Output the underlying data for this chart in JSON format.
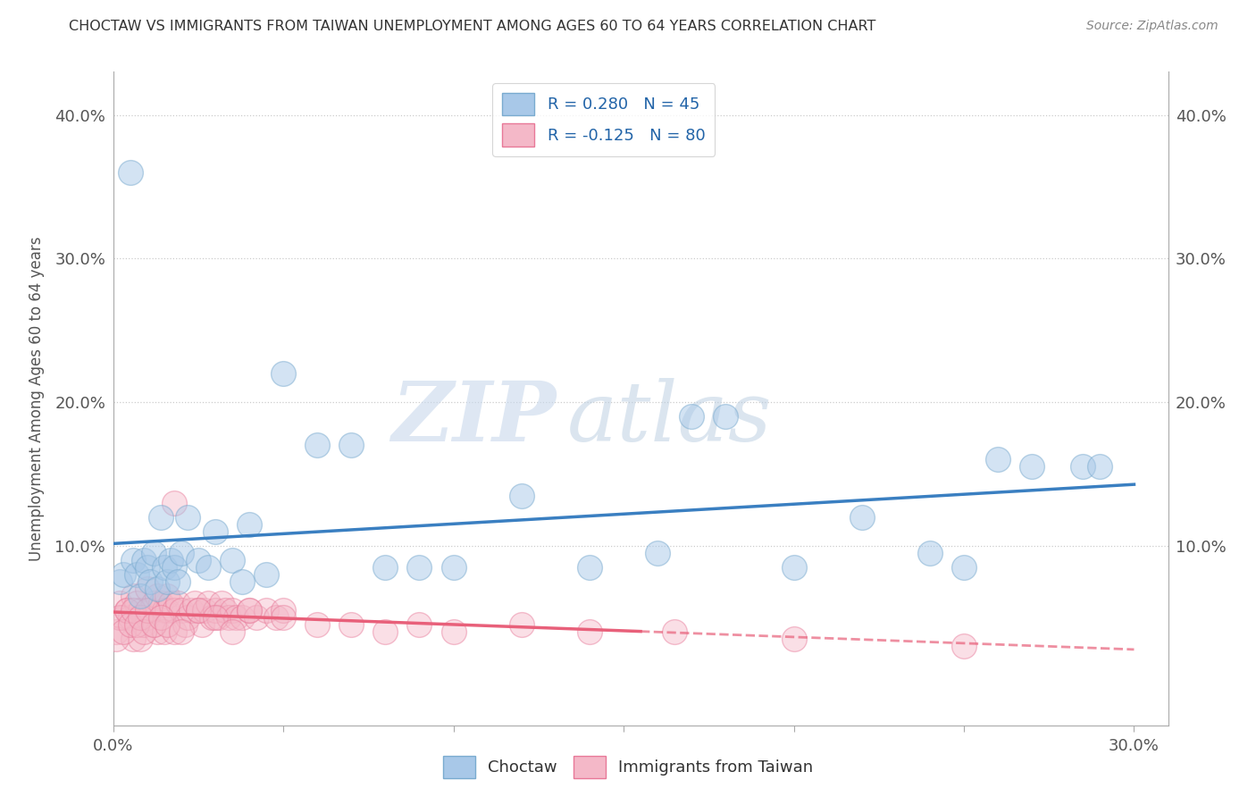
{
  "title": "CHOCTAW VS IMMIGRANTS FROM TAIWAN UNEMPLOYMENT AMONG AGES 60 TO 64 YEARS CORRELATION CHART",
  "source": "Source: ZipAtlas.com",
  "ylabel": "Unemployment Among Ages 60 to 64 years",
  "xlim": [
    0.0,
    0.31
  ],
  "ylim": [
    -0.025,
    0.43
  ],
  "xticks": [
    0.0,
    0.05,
    0.1,
    0.15,
    0.2,
    0.25,
    0.3
  ],
  "yticks": [
    0.0,
    0.1,
    0.2,
    0.3,
    0.4
  ],
  "xtick_labels": [
    "0.0%",
    "",
    "",
    "",
    "",
    "",
    "30.0%"
  ],
  "ytick_labels_left": [
    "",
    "10.0%",
    "20.0%",
    "30.0%",
    "40.0%"
  ],
  "ytick_labels_right": [
    "",
    "10.0%",
    "20.0%",
    "30.0%",
    "40.0%"
  ],
  "legend1_label": "R = 0.280   N = 45",
  "legend2_label": "R = -0.125   N = 80",
  "choctaw_color": "#a8c8e8",
  "taiwan_color": "#f4b8c8",
  "choctaw_edge_color": "#7aabcf",
  "taiwan_edge_color": "#e87898",
  "trend_choctaw_color": "#3a7fc1",
  "trend_taiwan_color": "#e8607a",
  "watermark_zip": "ZIP",
  "watermark_atlas": "atlas",
  "choctaw_label": "Choctaw",
  "taiwan_label": "Immigrants from Taiwan",
  "choctaw_x": [
    0.002,
    0.003,
    0.005,
    0.006,
    0.007,
    0.008,
    0.009,
    0.01,
    0.011,
    0.012,
    0.013,
    0.014,
    0.015,
    0.016,
    0.017,
    0.018,
    0.019,
    0.02,
    0.022,
    0.025,
    0.028,
    0.03,
    0.035,
    0.038,
    0.04,
    0.045,
    0.05,
    0.06,
    0.07,
    0.08,
    0.09,
    0.1,
    0.12,
    0.14,
    0.16,
    0.17,
    0.18,
    0.2,
    0.22,
    0.24,
    0.25,
    0.26,
    0.27,
    0.285,
    0.29
  ],
  "choctaw_y": [
    0.075,
    0.08,
    0.36,
    0.09,
    0.08,
    0.065,
    0.09,
    0.085,
    0.075,
    0.095,
    0.07,
    0.12,
    0.085,
    0.075,
    0.09,
    0.085,
    0.075,
    0.095,
    0.12,
    0.09,
    0.085,
    0.11,
    0.09,
    0.075,
    0.115,
    0.08,
    0.22,
    0.17,
    0.17,
    0.085,
    0.085,
    0.085,
    0.135,
    0.085,
    0.095,
    0.19,
    0.19,
    0.085,
    0.12,
    0.095,
    0.085,
    0.16,
    0.155,
    0.155,
    0.155
  ],
  "taiwan_x": [
    0.001,
    0.002,
    0.003,
    0.004,
    0.005,
    0.006,
    0.006,
    0.007,
    0.008,
    0.008,
    0.009,
    0.01,
    0.01,
    0.011,
    0.012,
    0.012,
    0.013,
    0.013,
    0.014,
    0.015,
    0.015,
    0.016,
    0.016,
    0.017,
    0.018,
    0.018,
    0.019,
    0.02,
    0.021,
    0.022,
    0.023,
    0.024,
    0.025,
    0.026,
    0.027,
    0.028,
    0.029,
    0.03,
    0.031,
    0.032,
    0.033,
    0.034,
    0.035,
    0.036,
    0.038,
    0.04,
    0.042,
    0.045,
    0.048,
    0.05,
    0.001,
    0.002,
    0.003,
    0.004,
    0.005,
    0.006,
    0.007,
    0.008,
    0.009,
    0.01,
    0.012,
    0.014,
    0.016,
    0.018,
    0.02,
    0.025,
    0.03,
    0.035,
    0.04,
    0.05,
    0.06,
    0.07,
    0.08,
    0.09,
    0.1,
    0.12,
    0.14,
    0.165,
    0.2,
    0.25
  ],
  "taiwan_y": [
    0.04,
    0.06,
    0.05,
    0.055,
    0.05,
    0.065,
    0.035,
    0.06,
    0.055,
    0.035,
    0.045,
    0.05,
    0.07,
    0.055,
    0.06,
    0.045,
    0.065,
    0.04,
    0.06,
    0.055,
    0.04,
    0.065,
    0.055,
    0.06,
    0.055,
    0.04,
    0.06,
    0.055,
    0.045,
    0.05,
    0.055,
    0.06,
    0.055,
    0.045,
    0.055,
    0.06,
    0.05,
    0.055,
    0.05,
    0.06,
    0.055,
    0.05,
    0.055,
    0.05,
    0.05,
    0.055,
    0.05,
    0.055,
    0.05,
    0.055,
    0.035,
    0.05,
    0.04,
    0.055,
    0.045,
    0.055,
    0.045,
    0.05,
    0.04,
    0.055,
    0.045,
    0.05,
    0.045,
    0.13,
    0.04,
    0.055,
    0.05,
    0.04,
    0.055,
    0.05,
    0.045,
    0.045,
    0.04,
    0.045,
    0.04,
    0.045,
    0.04,
    0.04,
    0.035,
    0.03
  ]
}
